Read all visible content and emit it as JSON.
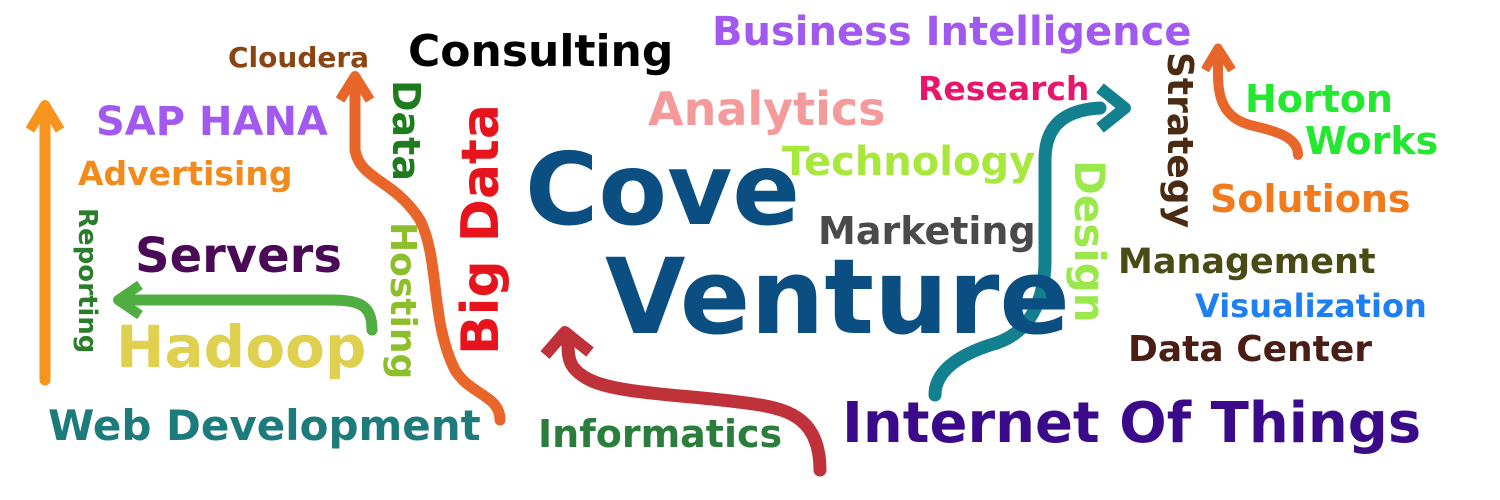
{
  "brand": {
    "line1": "Cove",
    "line2": "Venture"
  },
  "words": [
    {
      "id": "consulting",
      "text": "Consulting",
      "color": "#000000"
    },
    {
      "id": "business-intelligence",
      "text": "Business Intelligence",
      "color": "#a259f0"
    },
    {
      "id": "cloudera",
      "text": "Cloudera",
      "color": "#8b4513"
    },
    {
      "id": "sap-hana",
      "text": "SAP HANA",
      "color": "#a259f0"
    },
    {
      "id": "advertising",
      "text": "Advertising",
      "color": "#f28b1c"
    },
    {
      "id": "data-small",
      "text": "Data",
      "color": "#1e7b1e"
    },
    {
      "id": "big-data",
      "text": "Big Data",
      "color": "#e8141d"
    },
    {
      "id": "analytics",
      "text": "Analytics",
      "color": "#f59a9a"
    },
    {
      "id": "research",
      "text": "Research",
      "color": "#e8156b"
    },
    {
      "id": "strategy",
      "text": "Strategy",
      "color": "#4a2a10"
    },
    {
      "id": "horton",
      "text": "Horton",
      "color": "#22e82f"
    },
    {
      "id": "works",
      "text": "Works",
      "color": "#22e82f"
    },
    {
      "id": "technology",
      "text": "Technology",
      "color": "#a8e83c"
    },
    {
      "id": "solutions",
      "text": "Solutions",
      "color": "#f07a1c"
    },
    {
      "id": "reporting",
      "text": "Reporting",
      "color": "#2a7d2a"
    },
    {
      "id": "servers",
      "text": "Servers",
      "color": "#4a0a55"
    },
    {
      "id": "hosting",
      "text": "Hosting",
      "color": "#8dbf2c"
    },
    {
      "id": "marketing",
      "text": "Marketing",
      "color": "#4a4a4a"
    },
    {
      "id": "design",
      "text": "Design",
      "color": "#9be84d"
    },
    {
      "id": "management",
      "text": "Management",
      "color": "#4a4a14"
    },
    {
      "id": "visualization",
      "text": "Visualization",
      "color": "#1e7ff0"
    },
    {
      "id": "hadoop",
      "text": "Hadoop",
      "color": "#e0d050"
    },
    {
      "id": "data-center",
      "text": "Data Center",
      "color": "#4a1e14"
    },
    {
      "id": "web-development",
      "text": "Web Development",
      "color": "#1e7b7b"
    },
    {
      "id": "informatics",
      "text": "Informatics",
      "color": "#2a7d3a"
    },
    {
      "id": "internet-of-things",
      "text": "Internet Of Things",
      "color": "#3a0a8a"
    }
  ],
  "colors": {
    "brand": "#0b4f82",
    "arrow_orange": "#f7941d",
    "arrow_green": "#4fae3f",
    "arrow_brown": "#e8662a",
    "arrow_red": "#c0323a",
    "arrow_teal": "#13808f",
    "arrow_orange_right": "#e8662a"
  }
}
